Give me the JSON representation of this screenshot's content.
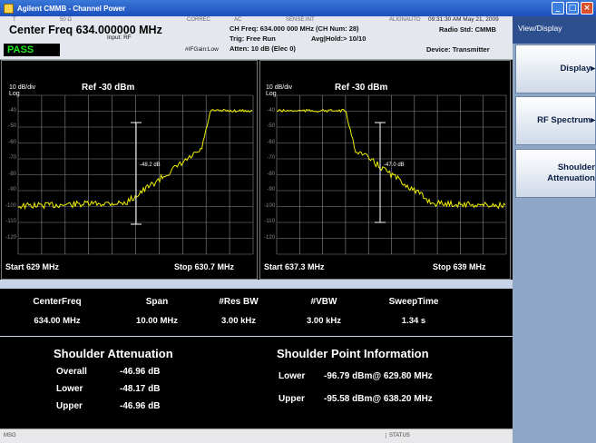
{
  "window": {
    "title": "Agilent CMMB - Channel Power"
  },
  "header": {
    "tiny_labels": [
      "T",
      "50 Ω",
      "CORREC",
      "AC",
      "SENSE:INT",
      "ALIGNAUTO"
    ],
    "center_freq": "Center Freq  634.000000 MHz",
    "input": "Input: RF",
    "ifgain": "#IFGain:Low",
    "ch_freq": "CH Freq: 634.000 000 MHz (CH Num: 28)",
    "trig": "Trig: Free Run",
    "avg": "Avg|Hold:> 10/10",
    "atten": "Atten: 10 dB (Elec 0)",
    "datetime": "09:31:30 AM May 21, 2009",
    "radio_std": "Radio Std: CMMB",
    "device": "Device: Transmitter",
    "status": "PASS"
  },
  "plots": [
    {
      "scale": "10 dB/div",
      "log": "Log",
      "ref": "Ref  -30 dBm",
      "ticks": [
        "-40",
        "-50",
        "-60",
        "-70",
        "-80",
        "-90",
        "-100",
        "-110",
        "-120"
      ],
      "marker_label": "-48.2 dB",
      "start": "Start  629 MHz",
      "stop": "Stop  630.7 MHz"
    },
    {
      "scale": "10 dB/div",
      "log": "Log",
      "ref": "Ref  -30 dBm",
      "ticks": [
        "-40",
        "-50",
        "-60",
        "-70",
        "-80",
        "-90",
        "-100",
        "-110",
        "-120"
      ],
      "marker_label": "-47.0 dB",
      "start": "Start  637.3 MHz",
      "stop": "Stop  639 MHz"
    }
  ],
  "measurements": {
    "headers": [
      "CenterFreq",
      "Span",
      "#Res BW",
      "#VBW",
      "SweepTime"
    ],
    "values": [
      "634.00 MHz",
      "10.00 MHz",
      "3.00 kHz",
      "3.00 kHz",
      "1.34 s"
    ]
  },
  "results": {
    "attenuation_title": "Shoulder Attenuation",
    "point_title": "Shoulder Point Information",
    "attenuation": [
      {
        "label": "Overall",
        "value": "-46.96 dB"
      },
      {
        "label": "Lower",
        "value": "-48.17 dB"
      },
      {
        "label": "Upper",
        "value": "-46.96 dB"
      }
    ],
    "points": [
      {
        "label": "Lower",
        "value": "-96.79 dBm@ 629.80 MHz"
      },
      {
        "label": "Upper",
        "value": "-95.58 dBm@ 638.20 MHz"
      }
    ]
  },
  "statusbar": {
    "msg": "MSG",
    "status": "STATUS"
  },
  "softkeys": {
    "menu_title": "View/Display",
    "keys": [
      "Display▸",
      "RF Spectrum▸",
      "Shoulder Attenuation"
    ]
  }
}
